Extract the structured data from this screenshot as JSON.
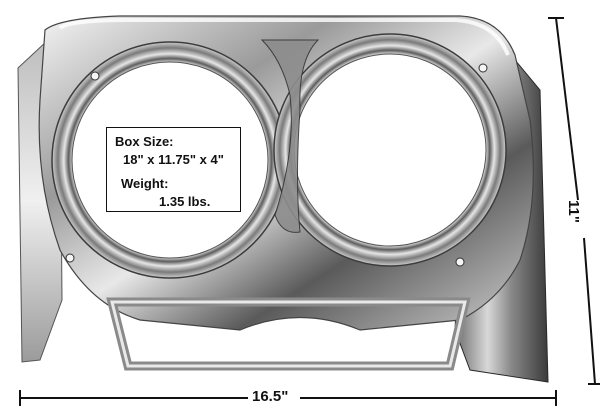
{
  "product_photo": {
    "subject": "chrome-headlight-bezel",
    "info_box": {
      "box_size_label": "Box Size:",
      "box_size_value": "18\" x 11.75\" x 4\"",
      "weight_label": "Weight:",
      "weight_value": "1.35 lbs."
    },
    "dimensions": {
      "width": "16.5\"",
      "height": "11\""
    }
  }
}
